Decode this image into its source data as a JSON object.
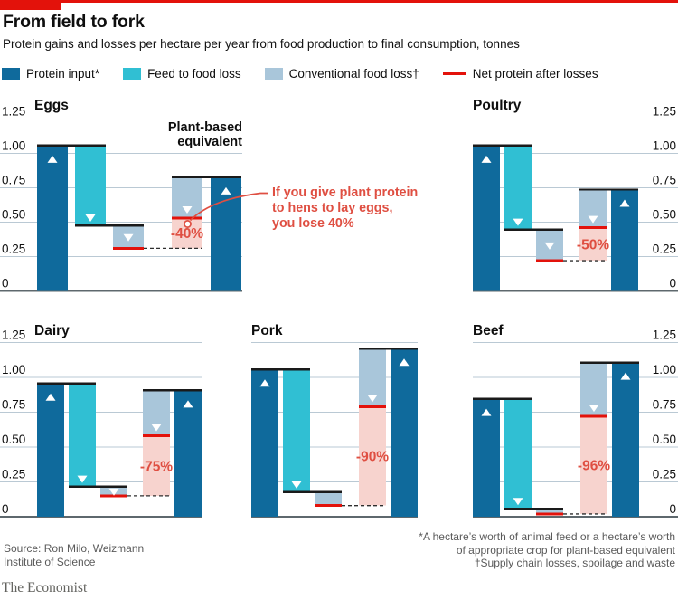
{
  "header": {
    "title": "From field to fork",
    "subtitle": "Protein gains and losses per hectare per year from food production to final consumption, tonnes"
  },
  "legend": {
    "items": [
      {
        "label": "Protein input*",
        "swatch": "dark_blue",
        "type": "square"
      },
      {
        "label": "Feed to food loss",
        "swatch": "cyan",
        "type": "square"
      },
      {
        "label": "Conventional food loss†",
        "swatch": "light_blue",
        "type": "square"
      },
      {
        "label": "Net protein after losses",
        "swatch": "red",
        "type": "line"
      }
    ]
  },
  "chart_data": {
    "type": "bar",
    "subtype": "waterfall-small-multiples",
    "unit": "tonnes of protein per hectare per year",
    "ylim": [
      0,
      1.25
    ],
    "y_ticks": [
      "1.25",
      "1.00",
      "0.75",
      "0.50",
      "0.25",
      "0"
    ],
    "y_tick_values": [
      1.25,
      1.0,
      0.75,
      0.5,
      0.25,
      0
    ],
    "grid": true,
    "series_legend": [
      "Protein input*",
      "Feed to food loss",
      "Conventional food loss†",
      "Net protein after losses"
    ],
    "charts": [
      {
        "title": "Eggs",
        "axis_side": "left",
        "protein_input": 1.05,
        "after_feed_loss": 0.47,
        "net_protein": 0.31,
        "plant_input": 0.82,
        "plant_net": 0.53,
        "loss_vs_plant": "-40%"
      },
      {
        "title": "Poultry",
        "axis_side": "right",
        "protein_input": 1.05,
        "after_feed_loss": 0.44,
        "net_protein": 0.22,
        "plant_input": 0.73,
        "plant_net": 0.46,
        "loss_vs_plant": "-50%"
      },
      {
        "title": "Dairy",
        "axis_side": "left",
        "protein_input": 0.95,
        "after_feed_loss": 0.21,
        "net_protein": 0.15,
        "plant_input": 0.9,
        "plant_net": 0.58,
        "loss_vs_plant": "-75%"
      },
      {
        "title": "Pork",
        "axis_side": "none",
        "protein_input": 1.05,
        "after_feed_loss": 0.17,
        "net_protein": 0.08,
        "plant_input": 1.2,
        "plant_net": 0.79,
        "loss_vs_plant": "-90%"
      },
      {
        "title": "Beef",
        "axis_side": "right",
        "protein_input": 0.84,
        "after_feed_loss": 0.05,
        "net_protein": 0.02,
        "plant_input": 1.1,
        "plant_net": 0.72,
        "loss_vs_plant": "-96%"
      }
    ],
    "annotations": {
      "plant_based_label_line1": "Plant-based",
      "plant_based_label_line2": "equivalent",
      "callout_line1": "If you give plant protein",
      "callout_line2": "to hens to lay eggs,",
      "callout_line3": "you lose 40%"
    }
  },
  "colors": {
    "brand_red": "#e3120b",
    "dark_blue": "#0f6a9c",
    "cyan": "#30bfd3",
    "light_blue": "#a9c6da",
    "pink": "#f7d3ce",
    "red": "#e3120b",
    "callout_red": "#df4f42",
    "grid": "#bac9d4",
    "zero_line": "#5e686d",
    "cap": "#1a1a1a",
    "dash": "#2e2e2e",
    "text": "#0e0e0e"
  },
  "footer": {
    "source_line1": "Source: Ron Milo, Weizmann",
    "source_line2": "Institute of Science",
    "footnote_line1": "*A hectare’s worth of animal feed or a hectare’s worth",
    "footnote_line2": "of appropriate crop for plant-based equivalent",
    "footnote_line3": "†Supply chain losses, spoilage and waste",
    "brand": "The Economist"
  }
}
